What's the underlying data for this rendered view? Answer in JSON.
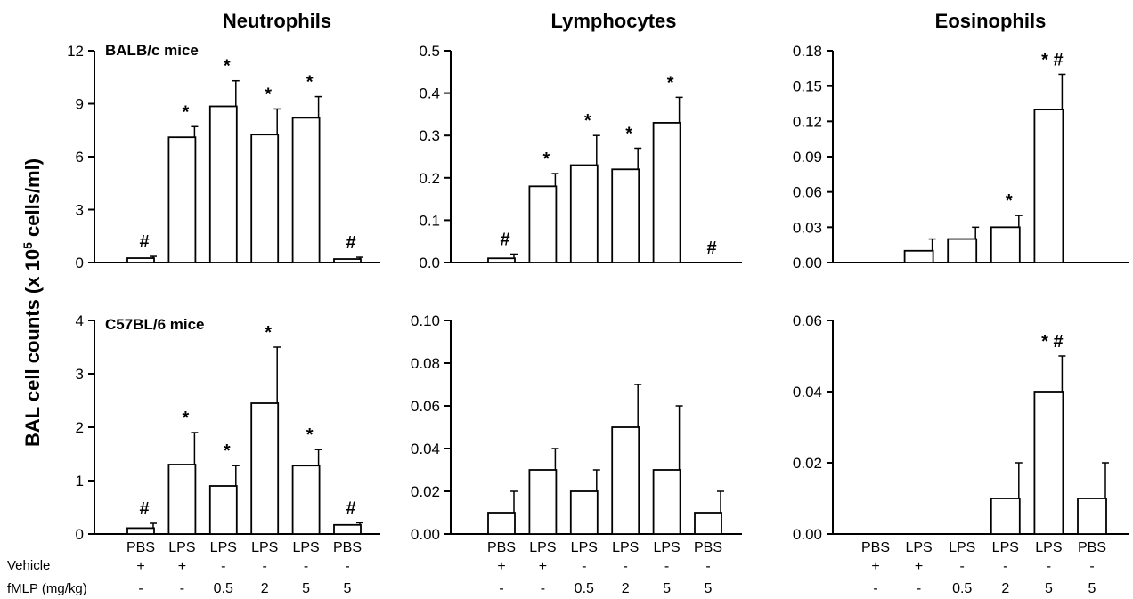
{
  "figure": {
    "ylabel_main": "BAL cell counts (x 10",
    "ylabel_sup": "5",
    "ylabel_tail": " cells/ml)",
    "row_labels": [
      "BALB/c mice",
      "C57BL/6 mice"
    ],
    "column_titles": [
      "Neutrophils",
      "Lymphocytes",
      "Eosinophils"
    ]
  },
  "treatments": {
    "groups": [
      "PBS",
      "LPS",
      "LPS",
      "LPS",
      "LPS",
      "PBS"
    ],
    "vehicle_label": "Vehicle",
    "vehicle": [
      "+",
      "+",
      "-",
      "-",
      "-",
      "-"
    ],
    "fmlp_label": "fMLP (mg/kg)",
    "fmlp": [
      "-",
      "-",
      "0.5",
      "2",
      "5",
      "5"
    ]
  },
  "chart_data": [
    {
      "type": "bar",
      "row": 0,
      "col": 0,
      "title": "Neutrophils",
      "row_label": "BALB/c mice",
      "categories": [
        "PBS",
        "LPS",
        "LPS",
        "LPS",
        "LPS",
        "PBS"
      ],
      "values": [
        0.25,
        7.1,
        8.85,
        7.25,
        8.2,
        0.2
      ],
      "errors": [
        0.1,
        0.6,
        1.45,
        1.45,
        1.2,
        0.1
      ],
      "marks": [
        "#",
        "*",
        "*",
        "*",
        "*",
        "#"
      ],
      "ylim": [
        0,
        12
      ],
      "yticks": [
        "0",
        "3",
        "6",
        "9",
        "12"
      ]
    },
    {
      "type": "bar",
      "row": 0,
      "col": 1,
      "title": "Lymphocytes",
      "categories": [
        "PBS",
        "LPS",
        "LPS",
        "LPS",
        "LPS",
        "PBS"
      ],
      "values": [
        0.01,
        0.18,
        0.23,
        0.22,
        0.33,
        0
      ],
      "errors": [
        0.01,
        0.03,
        0.07,
        0.05,
        0.06,
        0
      ],
      "marks": [
        "#",
        "*",
        "*",
        "*",
        "*",
        "#"
      ],
      "ylim": [
        0,
        0.5
      ],
      "yticks": [
        "0.0",
        "0.1",
        "0.2",
        "0.3",
        "0.4",
        "0.5"
      ]
    },
    {
      "type": "bar",
      "row": 0,
      "col": 2,
      "title": "Eosinophils",
      "categories": [
        "PBS",
        "LPS",
        "LPS",
        "LPS",
        "LPS",
        "PBS"
      ],
      "values": [
        0,
        0.01,
        0.02,
        0.03,
        0.13,
        0
      ],
      "errors": [
        0,
        0.01,
        0.01,
        0.01,
        0.03,
        0
      ],
      "marks": [
        "",
        "",
        "",
        "*",
        "* #",
        ""
      ],
      "ylim": [
        0,
        0.18
      ],
      "yticks": [
        "0.00",
        "0.03",
        "0.06",
        "0.09",
        "0.12",
        "0.15",
        "0.18"
      ]
    },
    {
      "type": "bar",
      "row": 1,
      "col": 0,
      "row_label": "C57BL/6 mice",
      "categories": [
        "PBS",
        "LPS",
        "LPS",
        "LPS",
        "LPS",
        "PBS"
      ],
      "values": [
        0.11,
        1.3,
        0.9,
        2.45,
        1.28,
        0.17
      ],
      "errors": [
        0.09,
        0.6,
        0.38,
        1.05,
        0.3,
        0.04
      ],
      "marks": [
        "#",
        "*",
        "*",
        "*",
        "*",
        "#"
      ],
      "ylim": [
        0,
        4
      ],
      "yticks": [
        "0",
        "1",
        "2",
        "3",
        "4"
      ]
    },
    {
      "type": "bar",
      "row": 1,
      "col": 1,
      "categories": [
        "PBS",
        "LPS",
        "LPS",
        "LPS",
        "LPS",
        "PBS"
      ],
      "values": [
        0.01,
        0.03,
        0.02,
        0.05,
        0.03,
        0.01
      ],
      "errors": [
        0.01,
        0.01,
        0.01,
        0.02,
        0.03,
        0.01
      ],
      "marks": [
        "",
        "",
        "",
        "",
        "",
        ""
      ],
      "ylim": [
        0,
        0.1
      ],
      "yticks": [
        "0.00",
        "0.02",
        "0.04",
        "0.06",
        "0.08",
        "0.10"
      ]
    },
    {
      "type": "bar",
      "row": 1,
      "col": 2,
      "categories": [
        "PBS",
        "LPS",
        "LPS",
        "LPS",
        "LPS",
        "PBS"
      ],
      "values": [
        0,
        0,
        0,
        0.01,
        0.04,
        0.01
      ],
      "errors": [
        0,
        0,
        0,
        0.01,
        0.01,
        0.01
      ],
      "marks": [
        "",
        "",
        "",
        "",
        "* #",
        ""
      ],
      "ylim": [
        0,
        0.06
      ],
      "yticks": [
        "0.00",
        "0.02",
        "0.04",
        "0.06"
      ]
    }
  ]
}
